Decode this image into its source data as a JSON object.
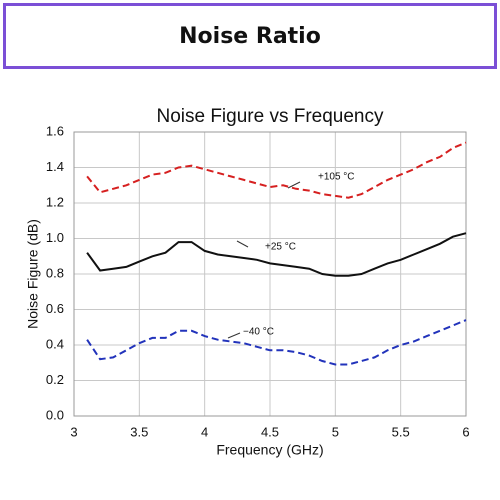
{
  "header": {
    "title": "Noise Ratio"
  },
  "chart_data": {
    "type": "line",
    "title": "Noise Figure vs Frequency",
    "x_label": "Frequency (GHz)",
    "y_label": "Noise Figure (dB)",
    "x": [
      3.1,
      3.2,
      3.3,
      3.4,
      3.5,
      3.6,
      3.7,
      3.8,
      3.9,
      4.0,
      4.1,
      4.2,
      4.3,
      4.4,
      4.5,
      4.6,
      4.7,
      4.8,
      4.9,
      5.0,
      5.1,
      5.2,
      5.3,
      5.4,
      5.5,
      5.6,
      5.7,
      5.8,
      5.9,
      6.0
    ],
    "series": [
      {
        "name": "+105 °C",
        "color": "#d62020",
        "line_style": "dashed",
        "values": [
          1.35,
          1.26,
          1.28,
          1.3,
          1.33,
          1.36,
          1.37,
          1.4,
          1.41,
          1.39,
          1.37,
          1.35,
          1.33,
          1.31,
          1.29,
          1.3,
          1.28,
          1.27,
          1.25,
          1.24,
          1.23,
          1.25,
          1.29,
          1.33,
          1.36,
          1.39,
          1.43,
          1.46,
          1.51,
          1.54
        ]
      },
      {
        "name": "+25 °C",
        "color": "#111111",
        "line_style": "solid",
        "values": [
          0.92,
          0.82,
          0.83,
          0.84,
          0.87,
          0.9,
          0.92,
          0.98,
          0.98,
          0.93,
          0.91,
          0.9,
          0.89,
          0.88,
          0.86,
          0.85,
          0.84,
          0.83,
          0.8,
          0.79,
          0.79,
          0.8,
          0.83,
          0.86,
          0.88,
          0.91,
          0.94,
          0.97,
          1.01,
          1.03
        ]
      },
      {
        "name": "−40 °C",
        "color": "#2233bb",
        "line_style": "dashed",
        "values": [
          0.43,
          0.32,
          0.33,
          0.37,
          0.41,
          0.44,
          0.44,
          0.48,
          0.48,
          0.45,
          0.43,
          0.42,
          0.41,
          0.39,
          0.37,
          0.37,
          0.36,
          0.34,
          0.31,
          0.29,
          0.29,
          0.31,
          0.33,
          0.37,
          0.4,
          0.42,
          0.45,
          0.48,
          0.51,
          0.54
        ]
      }
    ],
    "xlim": [
      3,
      6
    ],
    "xticks": [
      3,
      3.5,
      4,
      4.5,
      5,
      5.5,
      6
    ],
    "ylim": [
      0,
      1.6
    ],
    "yticks": [
      {
        "value": 0,
        "label": "0.0"
      },
      0.2,
      0.4,
      0.6,
      0.8,
      {
        "value": 1,
        "label": "1.0"
      },
      1.2,
      1.4,
      1.6
    ],
    "grid": true
  }
}
